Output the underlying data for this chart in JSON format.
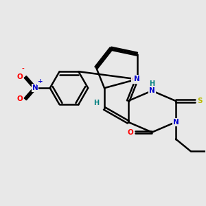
{
  "bg_color": "#e8e8e8",
  "bond_color": "#000000",
  "bond_width": 1.8,
  "atoms": {
    "N_blue": "#0000cc",
    "O_red": "#ff0000",
    "S_yellow": "#b8b800",
    "H_teal": "#008080",
    "C_black": "#000000"
  },
  "figsize": [
    3.0,
    3.0
  ],
  "dpi": 100,
  "xlim": [
    0,
    3.0
  ],
  "ylim": [
    0,
    3.0
  ]
}
